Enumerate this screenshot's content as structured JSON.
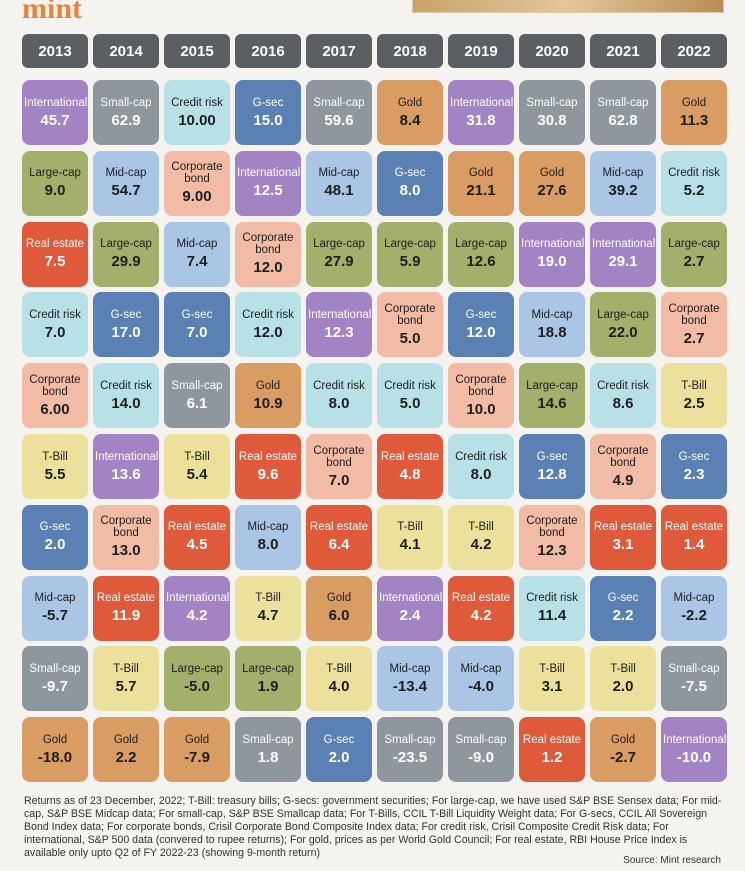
{
  "header": {
    "logo": "mint"
  },
  "columns": [
    {
      "year": "2013",
      "cells": [
        {
          "asset": "International",
          "value": "45.7",
          "color": "#a283c4"
        },
        {
          "asset": "Large-cap",
          "value": "9.0",
          "color": "#a3b06c"
        },
        {
          "asset": "Real estate",
          "value": "7.5",
          "color": "#de5a3b"
        },
        {
          "asset": "Credit risk",
          "value": "7.0",
          "color": "#b7e1e6"
        },
        {
          "asset": "Corporate bond",
          "value": "6.00",
          "color": "#f1bba5"
        },
        {
          "asset": "T-Bill",
          "value": "5.5",
          "color": "#ebe09c"
        },
        {
          "asset": "G-sec",
          "value": "2.0",
          "color": "#5a80b4"
        },
        {
          "asset": "Mid-cap",
          "value": "-5.7",
          "color": "#abc5e5"
        },
        {
          "asset": "Small-cap",
          "value": "-9.7",
          "color": "#8d979d"
        },
        {
          "asset": "Gold",
          "value": "-18.0",
          "color": "#d99c63"
        }
      ]
    },
    {
      "year": "2014",
      "cells": [
        {
          "asset": "Small-cap",
          "value": "62.9",
          "color": "#8d979d"
        },
        {
          "asset": "Mid-cap",
          "value": "54.7",
          "color": "#abc5e5"
        },
        {
          "asset": "Large-cap",
          "value": "29.9",
          "color": "#a3b06c"
        },
        {
          "asset": "G-sec",
          "value": "17.0",
          "color": "#5a80b4"
        },
        {
          "asset": "Credit risk",
          "value": "14.0",
          "color": "#b7e1e6"
        },
        {
          "asset": "International",
          "value": "13.6",
          "color": "#a283c4"
        },
        {
          "asset": "Corporate bond",
          "value": "13.0",
          "color": "#f1bba5"
        },
        {
          "asset": "Real estate",
          "value": "11.9",
          "color": "#de5a3b"
        },
        {
          "asset": "T-Bill",
          "value": "5.7",
          "color": "#ebe09c"
        },
        {
          "asset": "Gold",
          "value": "2.2",
          "color": "#d99c63"
        }
      ]
    },
    {
      "year": "2015",
      "cells": [
        {
          "asset": "Credit risk",
          "value": "10.00",
          "color": "#b7e1e6"
        },
        {
          "asset": "Corporate bond",
          "value": "9.00",
          "color": "#f1bba5"
        },
        {
          "asset": "Mid-cap",
          "value": "7.4",
          "color": "#abc5e5"
        },
        {
          "asset": "G-sec",
          "value": "7.0",
          "color": "#5a80b4"
        },
        {
          "asset": "Small-cap",
          "value": "6.1",
          "color": "#8d979d"
        },
        {
          "asset": "T-Bill",
          "value": "5.4",
          "color": "#ebe09c"
        },
        {
          "asset": "Real estate",
          "value": "4.5",
          "color": "#de5a3b"
        },
        {
          "asset": "International",
          "value": "4.2",
          "color": "#a283c4"
        },
        {
          "asset": "Large-cap",
          "value": "-5.0",
          "color": "#a3b06c"
        },
        {
          "asset": "Gold",
          "value": "-7.9",
          "color": "#d99c63"
        }
      ]
    },
    {
      "year": "2016",
      "cells": [
        {
          "asset": "G-sec",
          "value": "15.0",
          "color": "#5a80b4"
        },
        {
          "asset": "International",
          "value": "12.5",
          "color": "#a283c4"
        },
        {
          "asset": "Corporate bond",
          "value": "12.0",
          "color": "#f1bba5"
        },
        {
          "asset": "Credit risk",
          "value": "12.0",
          "color": "#b7e1e6"
        },
        {
          "asset": "Gold",
          "value": "10.9",
          "color": "#d99c63"
        },
        {
          "asset": "Real estate",
          "value": "9.6",
          "color": "#de5a3b"
        },
        {
          "asset": "Mid-cap",
          "value": "8.0",
          "color": "#abc5e5"
        },
        {
          "asset": "T-Bill",
          "value": "4.7",
          "color": "#ebe09c"
        },
        {
          "asset": "Large-cap",
          "value": "1.9",
          "color": "#a3b06c"
        },
        {
          "asset": "Small-cap",
          "value": "1.8",
          "color": "#8d979d"
        }
      ]
    },
    {
      "year": "2017",
      "cells": [
        {
          "asset": "Small-cap",
          "value": "59.6",
          "color": "#8d979d"
        },
        {
          "asset": "Mid-cap",
          "value": "48.1",
          "color": "#abc5e5"
        },
        {
          "asset": "Large-cap",
          "value": "27.9",
          "color": "#a3b06c"
        },
        {
          "asset": "International",
          "value": "12.3",
          "color": "#a283c4"
        },
        {
          "asset": "Credit risk",
          "value": "8.0",
          "color": "#b7e1e6"
        },
        {
          "asset": "Corporate bond",
          "value": "7.0",
          "color": "#f1bba5"
        },
        {
          "asset": "Real estate",
          "value": "6.4",
          "color": "#de5a3b"
        },
        {
          "asset": "Gold",
          "value": "6.0",
          "color": "#d99c63"
        },
        {
          "asset": "T-Bill",
          "value": "4.0",
          "color": "#ebe09c"
        },
        {
          "asset": "G-sec",
          "value": "2.0",
          "color": "#5a80b4"
        }
      ]
    },
    {
      "year": "2018",
      "cells": [
        {
          "asset": "Gold",
          "value": "8.4",
          "color": "#d99c63"
        },
        {
          "asset": "G-sec",
          "value": "8.0",
          "color": "#5a80b4"
        },
        {
          "asset": "Large-cap",
          "value": "5.9",
          "color": "#a3b06c"
        },
        {
          "asset": "Corporate bond",
          "value": "5.0",
          "color": "#f1bba5"
        },
        {
          "asset": "Credit risk",
          "value": "5.0",
          "color": "#b7e1e6"
        },
        {
          "asset": "Real estate",
          "value": "4.8",
          "color": "#de5a3b"
        },
        {
          "asset": "T-Bill",
          "value": "4.1",
          "color": "#ebe09c"
        },
        {
          "asset": "International",
          "value": "2.4",
          "color": "#a283c4"
        },
        {
          "asset": "Mid-cap",
          "value": "-13.4",
          "color": "#abc5e5"
        },
        {
          "asset": "Small-cap",
          "value": "-23.5",
          "color": "#8d979d"
        }
      ]
    },
    {
      "year": "2019",
      "cells": [
        {
          "asset": "International",
          "value": "31.8",
          "color": "#a283c4"
        },
        {
          "asset": "Gold",
          "value": "21.1",
          "color": "#d99c63"
        },
        {
          "asset": "Large-cap",
          "value": "12.6",
          "color": "#a3b06c"
        },
        {
          "asset": "G-sec",
          "value": "12.0",
          "color": "#5a80b4"
        },
        {
          "asset": "Corporate bond",
          "value": "10.0",
          "color": "#f1bba5"
        },
        {
          "asset": "Credit risk",
          "value": "8.0",
          "color": "#b7e1e6"
        },
        {
          "asset": "T-Bill",
          "value": "4.2",
          "color": "#ebe09c"
        },
        {
          "asset": "Real estate",
          "value": "4.2",
          "color": "#de5a3b"
        },
        {
          "asset": "Mid-cap",
          "value": "-4.0",
          "color": "#abc5e5"
        },
        {
          "asset": "Small-cap",
          "value": "-9.0",
          "color": "#8d979d"
        }
      ]
    },
    {
      "year": "2020",
      "cells": [
        {
          "asset": "Small-cap",
          "value": "30.8",
          "color": "#8d979d"
        },
        {
          "asset": "Gold",
          "value": "27.6",
          "color": "#d99c63"
        },
        {
          "asset": "International",
          "value": "19.0",
          "color": "#a283c4"
        },
        {
          "asset": "Mid-cap",
          "value": "18.8",
          "color": "#abc5e5"
        },
        {
          "asset": "Large-cap",
          "value": "14.6",
          "color": "#a3b06c"
        },
        {
          "asset": "G-sec",
          "value": "12.8",
          "color": "#5a80b4"
        },
        {
          "asset": "Corporate bond",
          "value": "12.3",
          "color": "#f1bba5"
        },
        {
          "asset": "Credit risk",
          "value": "11.4",
          "color": "#b7e1e6"
        },
        {
          "asset": "T-Bill",
          "value": "3.1",
          "color": "#ebe09c"
        },
        {
          "asset": "Real estate",
          "value": "1.2",
          "color": "#de5a3b"
        }
      ]
    },
    {
      "year": "2021",
      "cells": [
        {
          "asset": "Small-cap",
          "value": "62.8",
          "color": "#8d979d"
        },
        {
          "asset": "Mid-cap",
          "value": "39.2",
          "color": "#abc5e5"
        },
        {
          "asset": "International",
          "value": "29.1",
          "color": "#a283c4"
        },
        {
          "asset": "Large-cap",
          "value": "22.0",
          "color": "#a3b06c"
        },
        {
          "asset": "Credit risk",
          "value": "8.6",
          "color": "#b7e1e6"
        },
        {
          "asset": "Corporate bond",
          "value": "4.9",
          "color": "#f1bba5"
        },
        {
          "asset": "Real estate",
          "value": "3.1",
          "color": "#de5a3b"
        },
        {
          "asset": "G-sec",
          "value": "2.2",
          "color": "#5a80b4"
        },
        {
          "asset": "T-Bill",
          "value": "2.0",
          "color": "#ebe09c"
        },
        {
          "asset": "Gold",
          "value": "-2.7",
          "color": "#d99c63"
        }
      ]
    },
    {
      "year": "2022",
      "cells": [
        {
          "asset": "Gold",
          "value": "11.3",
          "color": "#d99c63"
        },
        {
          "asset": "Credit risk",
          "value": "5.2",
          "color": "#b7e1e6"
        },
        {
          "asset": "Large-cap",
          "value": "2.7",
          "color": "#a3b06c"
        },
        {
          "asset": "Corporate bond",
          "value": "2.7",
          "color": "#f1bba5"
        },
        {
          "asset": "T-Bill",
          "value": "2.5",
          "color": "#ebe09c"
        },
        {
          "asset": "G-sec",
          "value": "2.3",
          "color": "#5a80b4"
        },
        {
          "asset": "Real estate",
          "value": "1.4",
          "color": "#de5a3b"
        },
        {
          "asset": "Mid-cap",
          "value": "-2.2",
          "color": "#abc5e5"
        },
        {
          "asset": "Small-cap",
          "value": "-7.5",
          "color": "#8d979d"
        },
        {
          "asset": "International",
          "value": "-10.0",
          "color": "#a283c4"
        }
      ]
    }
  ],
  "footnote": "Returns as of 23 December, 2022; T-Bill: treasury bills; G-secs: government securities; For large-cap, we have used S&P BSE Sensex data; For mid-cap, S&P BSE Midcap data; For small-cap, S&P BSE Smallcap data; For T-Bills, CCIL T-Bill Liquidity Weight data; For G-secs, CCIL All Sovereign Bond Index data; For corporate bonds, Crisil Corporate Bond Composite Index data; For credit risk, Crisil Composite Credit Risk data; For international, S&P 500 data (convered to rupee returns); For gold, prices as per World Gold Council; For real estate, RBI House Price Index is available only upto Q2 of FY 2022-23 (showing 9-month return)",
  "source": "Source: Mint research"
}
